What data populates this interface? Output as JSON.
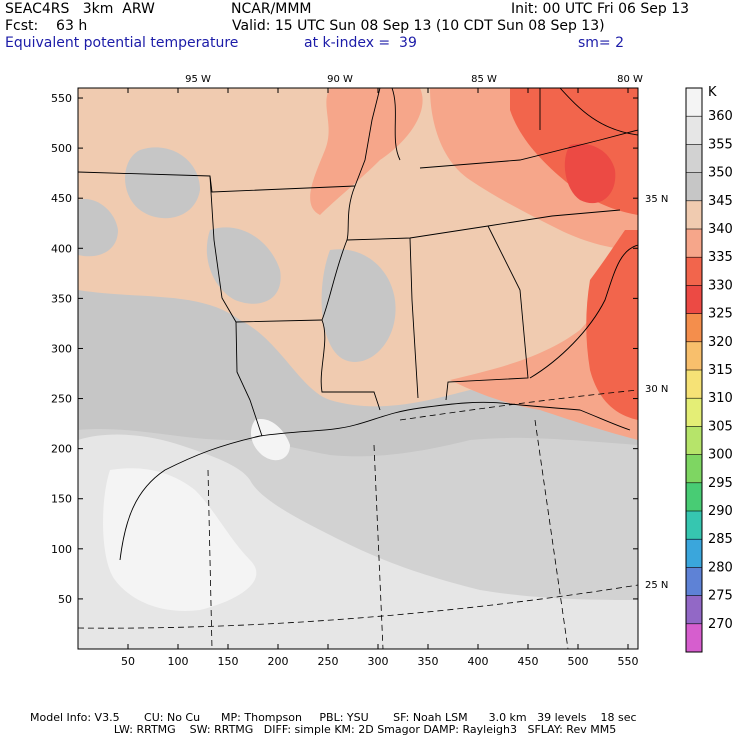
{
  "header": {
    "model": "SEAC4RS   3km  ARW",
    "center": "NCAR/MMM",
    "init": "Init: 00 UTC Fri 06 Sep 13",
    "fcst": "Fcst:    63 h",
    "valid": "Valid: 15 UTC Sun 08 Sep 13 (10 CDT Sun 08 Sep 13)",
    "field": "Equivalent potential temperature",
    "level": "at k-index =  39",
    "smooth": "sm= 2"
  },
  "axes": {
    "x_ticks": [
      "50",
      "100",
      "150",
      "200",
      "250",
      "300",
      "350",
      "400",
      "450",
      "500",
      "550"
    ],
    "y_ticks": [
      "50",
      "100",
      "150",
      "200",
      "250",
      "300",
      "350",
      "400",
      "450",
      "500",
      "550"
    ],
    "lon_labels": [
      "95 W",
      "90 W",
      "85 W",
      "80 W"
    ],
    "lat_labels": [
      "35 N",
      "30 N",
      "25 N"
    ]
  },
  "colorbar": {
    "unit": "K",
    "levels": [
      "360",
      "355",
      "350",
      "345",
      "340",
      "335",
      "330",
      "325",
      "320",
      "315",
      "310",
      "305",
      "300",
      "295",
      "290",
      "285",
      "280",
      "275",
      "270"
    ],
    "colors": [
      "#f4f4f4",
      "#e6e6e6",
      "#d2d2d2",
      "#c6c6c6",
      "#f0cbb0",
      "#f6a68a",
      "#f2654c",
      "#ec4a44",
      "#f48e4c",
      "#f8bf6c",
      "#f6e276",
      "#e4ee76",
      "#b6e46a",
      "#7ed662",
      "#48cc74",
      "#36c6b0",
      "#3aa6dc",
      "#5e82d6",
      "#9268c6",
      "#d65ece"
    ]
  },
  "footer": {
    "line1": "Model Info: V3.5       CU: No Cu      MP: Thompson     PBL: YSU       SF: Noah LSM      3.0 km   39 levels    18 sec",
    "line2": "                        LW: RRTMG    SW: RRTMG   DIFF: simple KM: 2D Smagor DAMP: Rayleigh3   SFLAY: Rev MM5"
  }
}
